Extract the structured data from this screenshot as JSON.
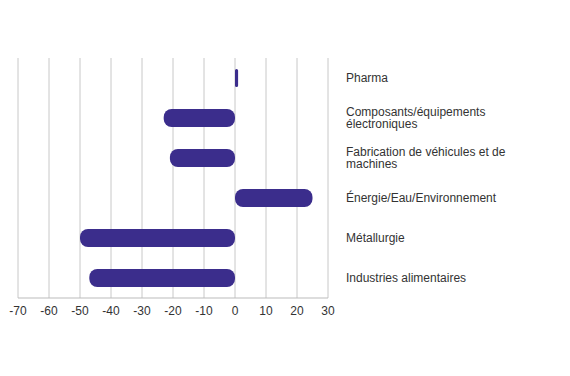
{
  "chart_data": {
    "type": "bar",
    "orientation": "horizontal",
    "categories": [
      "Pharma",
      "Composants/équipements électroniques",
      "Fabrication de véhicules et de machines",
      "Énergie/Eau/Environnement",
      "Métallurgie",
      "Industries alimentaires"
    ],
    "values": [
      1,
      -23,
      -21,
      25,
      -50,
      -47
    ],
    "color": "#3b2d8c",
    "xlim": [
      -70,
      30
    ],
    "xticks": [
      -70,
      -60,
      -50,
      -40,
      -30,
      -20,
      -10,
      0,
      10,
      20,
      30
    ],
    "grid": true
  }
}
